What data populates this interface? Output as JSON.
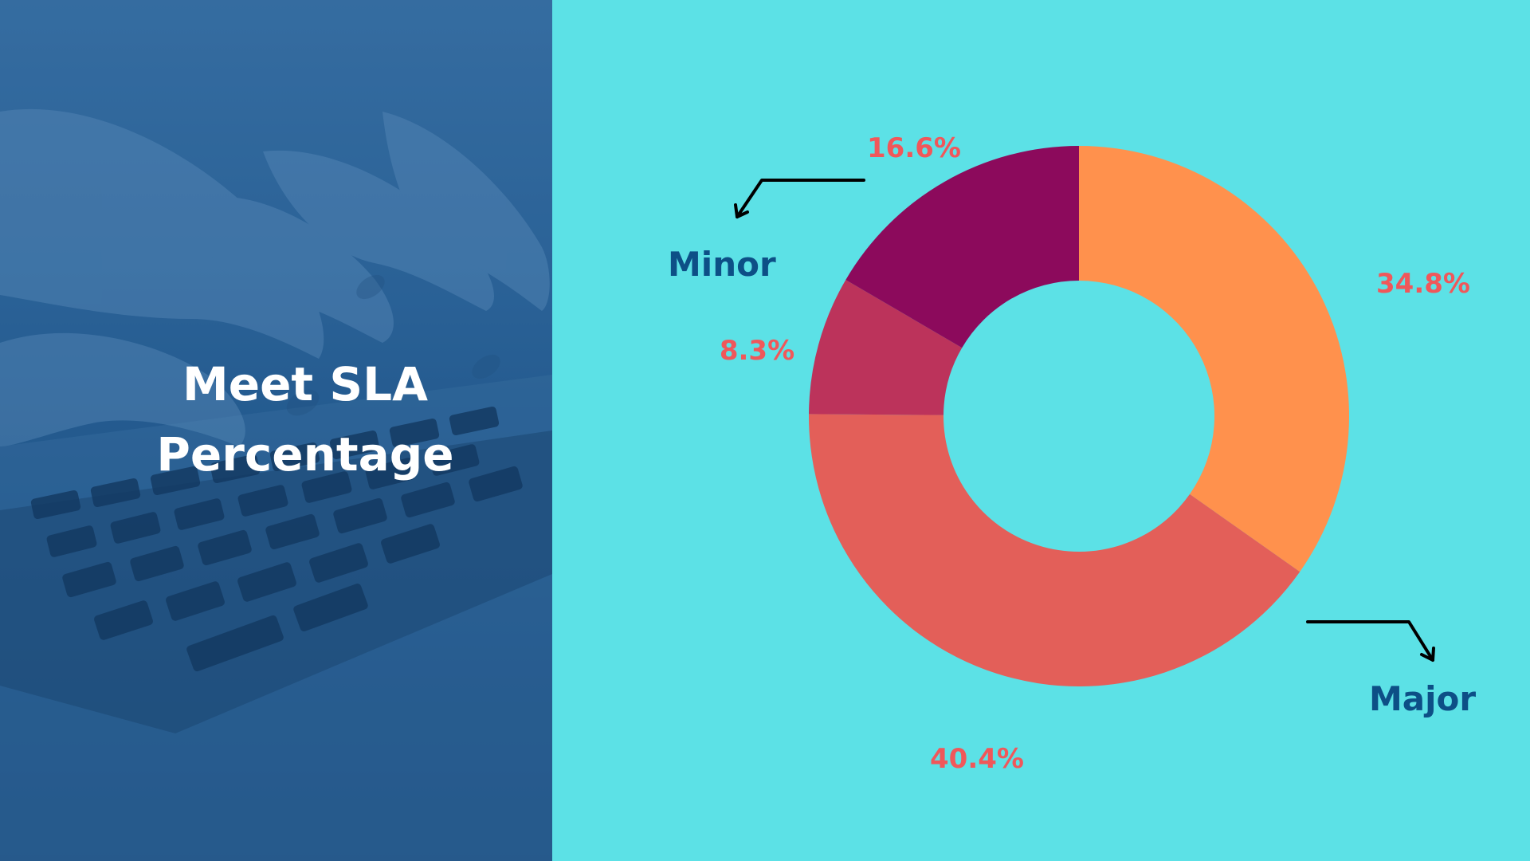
{
  "slide": {
    "title_line1": "Meet SLA",
    "title_line2": "Percentage",
    "left_bg_color": "#2f6497",
    "right_bg_color": "#5ce1e6"
  },
  "chart_data": {
    "type": "pie",
    "variant": "donut",
    "title": "",
    "slices": [
      {
        "label": "34.8%",
        "value": 34.8,
        "color": "#ff914d"
      },
      {
        "label": "40.4%",
        "value": 40.4,
        "color": "#e35f59"
      },
      {
        "label": "8.3%",
        "value": 8.3,
        "color": "#bc335b"
      },
      {
        "label": "16.6%",
        "value": 16.6,
        "color": "#8c0a5c"
      }
    ],
    "value_label_color": "#f0575a",
    "annotations": [
      {
        "text": "Minor",
        "color": "#0d4f86"
      },
      {
        "text": "Major",
        "color": "#0d4f86"
      }
    ]
  }
}
